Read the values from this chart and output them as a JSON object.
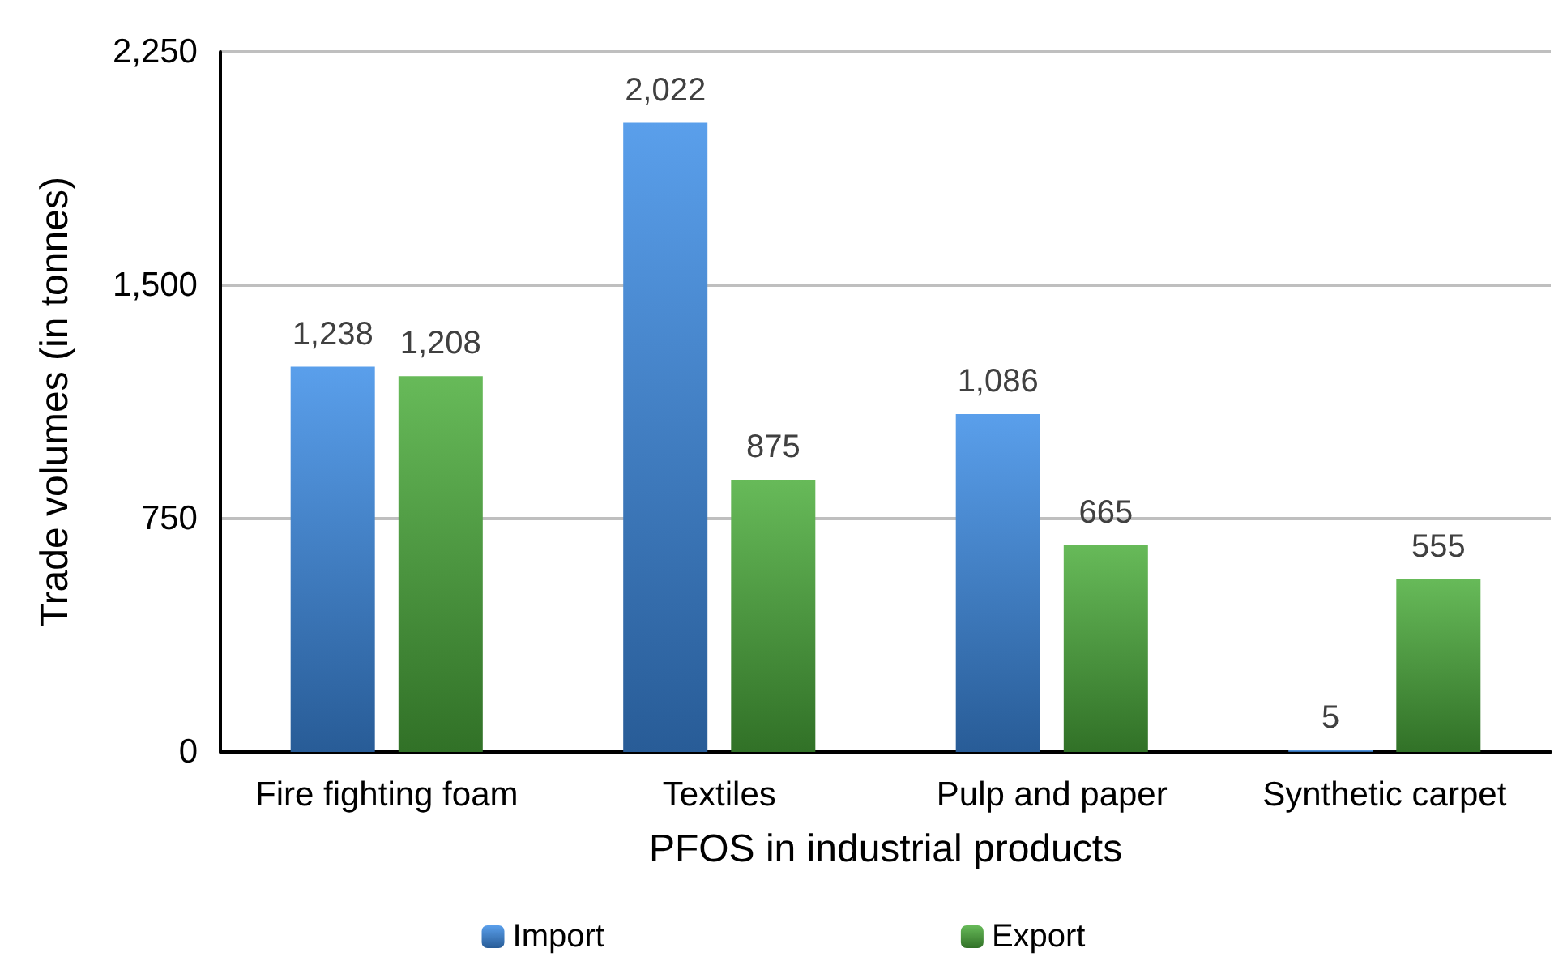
{
  "chart_data": {
    "type": "bar",
    "xlabel": "PFOS in industrial products",
    "ylabel": "Trade volumes (in tonnes)",
    "categories": [
      "Fire fighting foam",
      "Textiles",
      "Pulp and paper",
      "Synthetic carpet"
    ],
    "series": [
      {
        "name": "Import",
        "color": "#3d8ee8",
        "values": [
          1238,
          2022,
          1086,
          5
        ],
        "value_labels": [
          "1,238",
          "2,022",
          "1,086",
          "5"
        ]
      },
      {
        "name": "Export",
        "color": "#4cae3c",
        "values": [
          1208,
          875,
          665,
          555
        ],
        "value_labels": [
          "1,208",
          "875",
          "665",
          "555"
        ]
      }
    ],
    "ylim": [
      0,
      2250
    ],
    "yticks": [
      0,
      750,
      {
        "value": 1500,
        "label": "1,500"
      },
      {
        "value": 2250,
        "label": "2,250"
      }
    ],
    "grid": "y",
    "legend": "bottom"
  }
}
